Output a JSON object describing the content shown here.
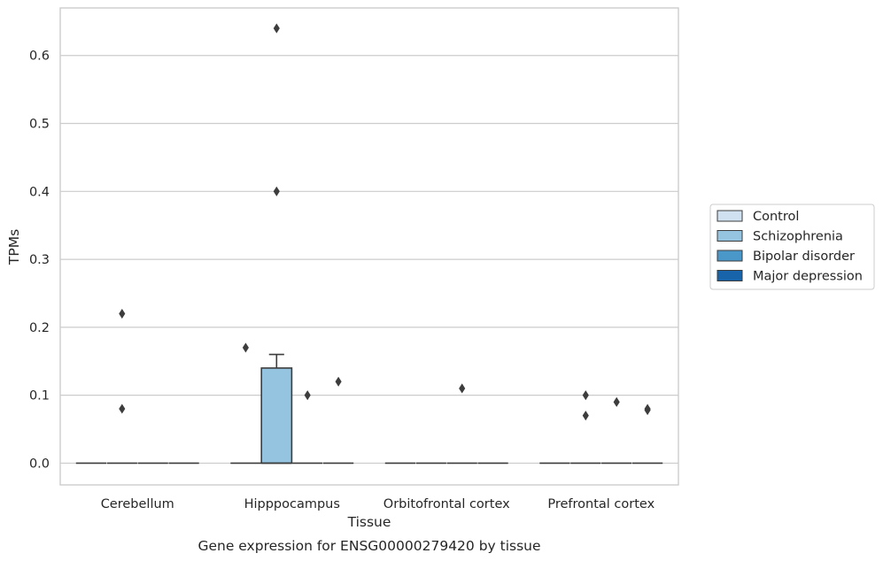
{
  "chart_data": {
    "type": "boxplot",
    "caption": "Gene expression for ENSG00000279420 by tissue",
    "xlabel": "Tissue",
    "ylabel": "TPMs",
    "ylim": [
      -0.032,
      0.67
    ],
    "yticks": [
      0.0,
      0.1,
      0.2,
      0.3,
      0.4,
      0.5,
      0.6
    ],
    "ytick_labels": [
      "0.0",
      "0.1",
      "0.2",
      "0.3",
      "0.4",
      "0.5",
      "0.6"
    ],
    "grid": true,
    "legend_position": "right",
    "categories": [
      "Cerebellum",
      "Hipppocampus",
      "Orbitofrontal cortex",
      "Prefrontal cortex"
    ],
    "series": [
      {
        "name": "Control",
        "color": "#d0e1f2"
      },
      {
        "name": "Schizophrenia",
        "color": "#94c4df"
      },
      {
        "name": "Bipolar disorder",
        "color": "#4a98c9"
      },
      {
        "name": "Major depression",
        "color": "#1764ab"
      }
    ],
    "boxes": [
      {
        "category": "Cerebellum",
        "series": "Control",
        "q1": 0,
        "median": 0,
        "q3": 0,
        "whisker_low": 0,
        "whisker_high": 0,
        "outliers": []
      },
      {
        "category": "Cerebellum",
        "series": "Schizophrenia",
        "q1": 0,
        "median": 0,
        "q3": 0,
        "whisker_low": 0,
        "whisker_high": 0,
        "outliers": [
          0.22,
          0.08
        ]
      },
      {
        "category": "Cerebellum",
        "series": "Bipolar disorder",
        "q1": 0,
        "median": 0,
        "q3": 0,
        "whisker_low": 0,
        "whisker_high": 0,
        "outliers": []
      },
      {
        "category": "Cerebellum",
        "series": "Major depression",
        "q1": 0,
        "median": 0,
        "q3": 0,
        "whisker_low": 0,
        "whisker_high": 0,
        "outliers": []
      },
      {
        "category": "Hipppocampus",
        "series": "Control",
        "q1": 0,
        "median": 0,
        "q3": 0,
        "whisker_low": 0,
        "whisker_high": 0,
        "outliers": [
          0.17
        ]
      },
      {
        "category": "Hipppocampus",
        "series": "Schizophrenia",
        "q1": 0,
        "median": 0,
        "q3": 0.14,
        "whisker_low": 0,
        "whisker_high": 0.16,
        "outliers": [
          0.64,
          0.4
        ]
      },
      {
        "category": "Hipppocampus",
        "series": "Bipolar disorder",
        "q1": 0,
        "median": 0,
        "q3": 0,
        "whisker_low": 0,
        "whisker_high": 0,
        "outliers": [
          0.1
        ]
      },
      {
        "category": "Hipppocampus",
        "series": "Major depression",
        "q1": 0,
        "median": 0,
        "q3": 0,
        "whisker_low": 0,
        "whisker_high": 0,
        "outliers": [
          0.12
        ]
      },
      {
        "category": "Orbitofrontal cortex",
        "series": "Control",
        "q1": 0,
        "median": 0,
        "q3": 0,
        "whisker_low": 0,
        "whisker_high": 0,
        "outliers": []
      },
      {
        "category": "Orbitofrontal cortex",
        "series": "Schizophrenia",
        "q1": 0,
        "median": 0,
        "q3": 0,
        "whisker_low": 0,
        "whisker_high": 0,
        "outliers": []
      },
      {
        "category": "Orbitofrontal cortex",
        "series": "Bipolar disorder",
        "q1": 0,
        "median": 0,
        "q3": 0,
        "whisker_low": 0,
        "whisker_high": 0,
        "outliers": [
          0.11
        ]
      },
      {
        "category": "Orbitofrontal cortex",
        "series": "Major depression",
        "q1": 0,
        "median": 0,
        "q3": 0,
        "whisker_low": 0,
        "whisker_high": 0,
        "outliers": []
      },
      {
        "category": "Prefrontal cortex",
        "series": "Control",
        "q1": 0,
        "median": 0,
        "q3": 0,
        "whisker_low": 0,
        "whisker_high": 0,
        "outliers": []
      },
      {
        "category": "Prefrontal cortex",
        "series": "Schizophrenia",
        "q1": 0,
        "median": 0,
        "q3": 0,
        "whisker_low": 0,
        "whisker_high": 0,
        "outliers": [
          0.1,
          0.07
        ]
      },
      {
        "category": "Prefrontal cortex",
        "series": "Bipolar disorder",
        "q1": 0,
        "median": 0,
        "q3": 0,
        "whisker_low": 0,
        "whisker_high": 0,
        "outliers": [
          0.09
        ]
      },
      {
        "category": "Prefrontal cortex",
        "series": "Major depression",
        "q1": 0,
        "median": 0,
        "q3": 0,
        "whisker_low": 0,
        "whisker_high": 0,
        "outliers": [
          0.08,
          0.078
        ]
      }
    ]
  }
}
